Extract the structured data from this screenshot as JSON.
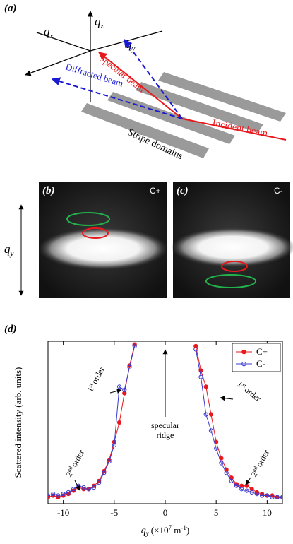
{
  "panel_a": {
    "label": "(a)",
    "axes": {
      "qx": {
        "symbol": "q",
        "subscript": "x"
      },
      "qz": {
        "symbol": "q",
        "subscript": "z"
      },
      "qy": {
        "symbol": "q",
        "subscript": "y"
      }
    },
    "beams": {
      "specular": "Specular beam",
      "diffracted": "Diffracted beam",
      "incident": "Incident beam"
    },
    "sample": "Stripe domains"
  },
  "panel_b": {
    "label": "(b)",
    "helicity": "C+"
  },
  "panel_c": {
    "label": "(c)",
    "helicity": "C-"
  },
  "detector_axis": {
    "symbol": "q",
    "subscript": "y"
  },
  "panel_d": {
    "label": "(d)"
  },
  "chart_data": {
    "type": "line",
    "y_label": "Scattered intensity (arb. units)",
    "x_label": {
      "symbol": "q",
      "subscript": "y",
      "prefix": "(×10",
      "exponent": "7",
      "unit": " m",
      "unit_exponent": "-1",
      "close": ")"
    },
    "x": [
      -11.5,
      -11,
      -10.5,
      -10,
      -9.5,
      -9,
      -8.5,
      -8,
      -7.5,
      -7,
      -6.5,
      -6,
      -5.5,
      -5,
      -4.5,
      -4,
      -3.5,
      -3,
      0,
      3,
      3.5,
      4,
      4.5,
      5,
      5.5,
      6,
      6.5,
      7,
      7.5,
      8,
      8.5,
      9,
      9.5,
      10,
      10.5,
      11,
      11.5
    ],
    "series": [
      {
        "name": "C+",
        "color": "#e8191c",
        "marker": "filled",
        "values": [
          4,
          5,
          4,
          5,
          6,
          8,
          10,
          9,
          9,
          11,
          14,
          20,
          27,
          38,
          50,
          68,
          85,
          98,
          null,
          97,
          82,
          72,
          55,
          38,
          28,
          21,
          16,
          12,
          11,
          11,
          9,
          7,
          6,
          5,
          5,
          4,
          4
        ]
      },
      {
        "name": "C-",
        "color": "#3a3ad0",
        "marker": "open",
        "values": [
          5,
          6,
          5,
          6,
          7,
          9,
          11,
          10,
          9,
          10,
          13,
          19,
          26,
          36,
          72,
          70,
          84,
          97,
          null,
          95,
          78,
          55,
          45,
          34,
          25,
          19,
          14,
          11,
          9,
          8,
          7,
          6,
          5,
          5,
          4,
          4,
          4
        ]
      }
    ],
    "xlim": [
      -11.5,
      11.5
    ],
    "xticks": [
      -10,
      -5,
      0,
      5,
      10
    ],
    "ylim": [
      0,
      100
    ],
    "legend": "upper right",
    "annotations": {
      "first_order_left": {
        "number": "1",
        "suffix": "st",
        "word": "order"
      },
      "first_order_right": {
        "number": "1",
        "suffix": "st",
        "word": "order"
      },
      "second_order_left": {
        "number": "2",
        "suffix": "nd",
        "word": "order"
      },
      "second_order_right": {
        "number": "2",
        "suffix": "nd",
        "word": "order"
      },
      "specular_ridge": [
        "specular",
        "ridge"
      ]
    }
  }
}
